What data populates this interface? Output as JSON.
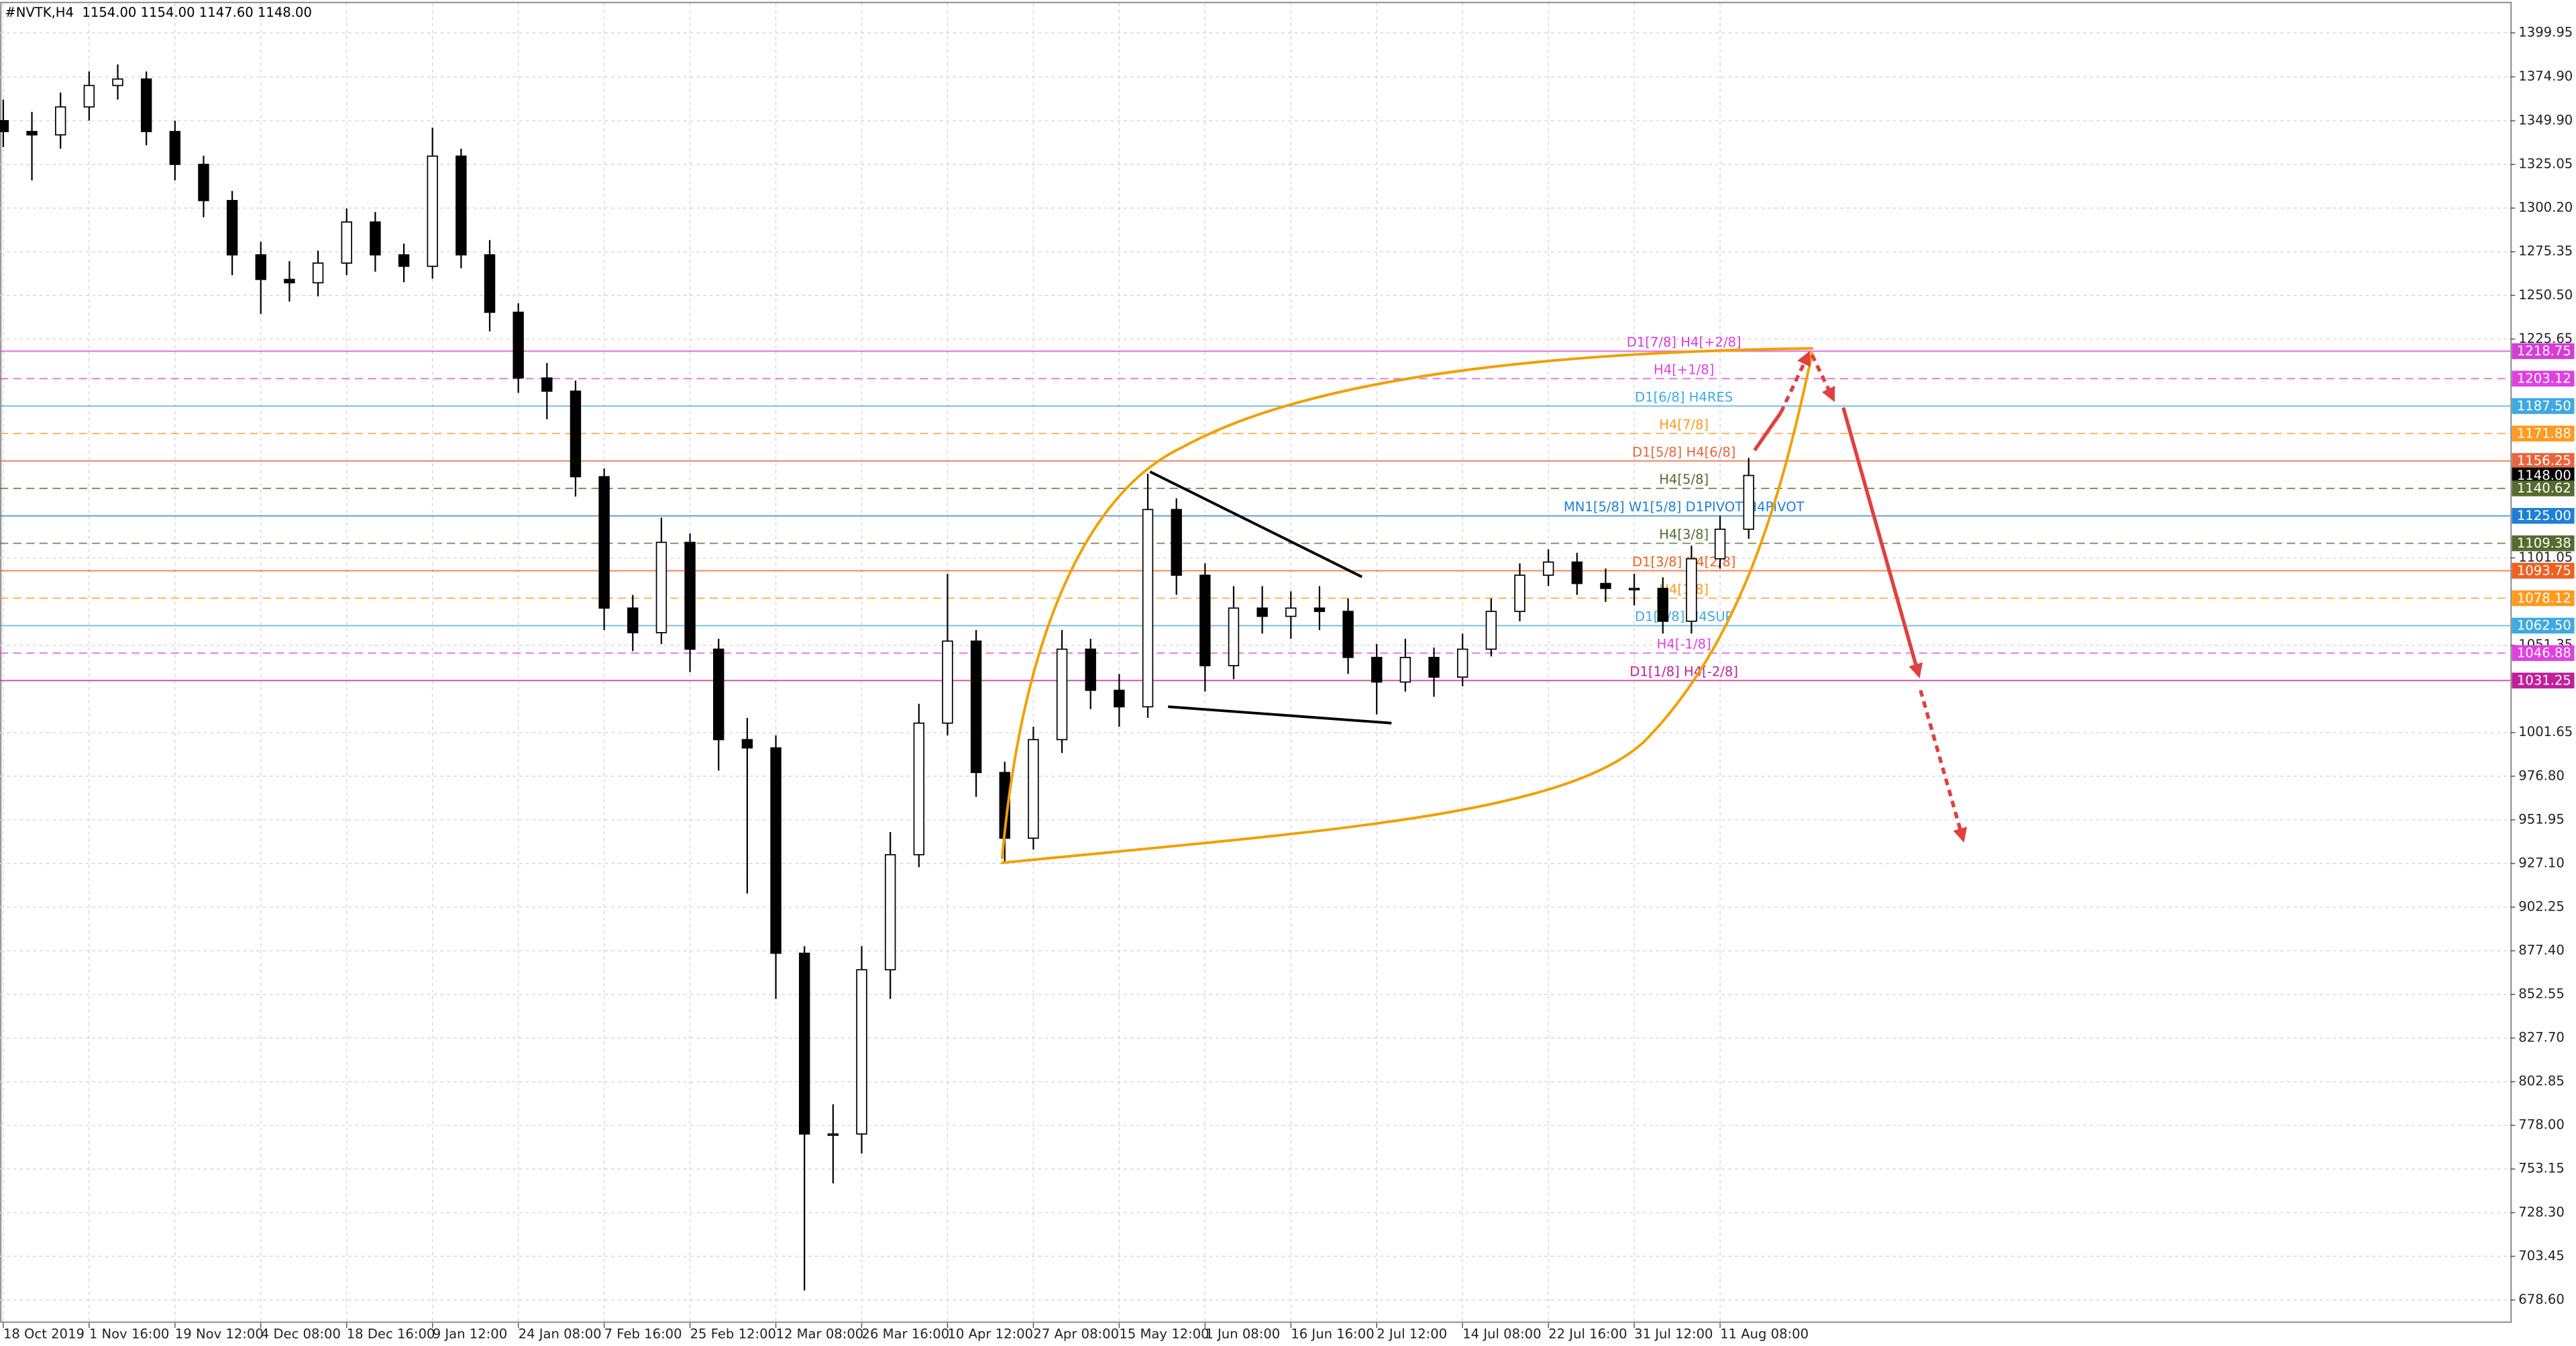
{
  "chart_data": {
    "type": "candlestick",
    "title": "#NVTK,H4  1154.00 1154.00 1147.60 1148.00",
    "categories": [
      "18 Oct 2019",
      null,
      null,
      "1 Nov 16:00",
      null,
      null,
      "19 Nov 12:00",
      null,
      null,
      "4 Dec 08:00",
      null,
      null,
      "18 Dec 16:00",
      null,
      null,
      "9 Jan 12:00",
      null,
      null,
      "24 Jan 08:00",
      null,
      null,
      "7 Feb 16:00",
      null,
      null,
      "25 Feb 12:00",
      null,
      null,
      "12 Mar 08:00",
      null,
      null,
      "26 Mar 16:00",
      null,
      null,
      "10 Apr 12:00",
      null,
      null,
      "27 Apr 08:00",
      null,
      null,
      "15 May 12:00",
      null,
      null,
      "1 Jun 08:00",
      null,
      null,
      "16 Jun 16:00",
      null,
      null,
      "2 Jul 12:00",
      null,
      null,
      "14 Jul 08:00",
      null,
      null,
      "22 Jul 16:00",
      null,
      null,
      "31 Jul 12:00",
      null,
      null,
      "11 Aug 08:00",
      null
    ],
    "open": [
      1350.0,
      1343.8,
      1341.9,
      1357.8,
      1370.0,
      1373.7,
      1343.8,
      1325.1,
      1304.5,
      1273.6,
      1259.6,
      1257.7,
      1268.9,
      1292.3,
      1273.6,
      1267.1,
      1329.8,
      1273.6,
      1240.9,
      1203.5,
      1196.0,
      1147.3,
      1072.5,
      1058.5,
      1109.9,
      1049.1,
      997.6,
      992.9,
      876.0,
      773.1,
      773.1,
      866.6,
      932.1,
      1007.0,
      1053.7,
      978.9,
      941.5,
      997.6,
      1049.1,
      1025.7,
      1016.3,
      1128.6,
      1091.2,
      1039.7,
      1072.5,
      1067.8,
      1072.5,
      1070.6,
      1044.4,
      1030.4,
      1044.4,
      1033.2,
      1049.1,
      1070.6,
      1091.2,
      1098.7,
      1086.5,
      1083.7,
      1083.7,
      1065.0,
      1100.6,
      1117.4
    ],
    "high": [
      1362,
      1355,
      1366,
      1378,
      1382,
      1378,
      1350,
      1330,
      1310,
      1281,
      1270,
      1276,
      1300,
      1298,
      1280,
      1346,
      1334,
      1282,
      1246,
      1212,
      1202,
      1152,
      1080,
      1124,
      1115,
      1055,
      1010,
      1000,
      880,
      790,
      880,
      945,
      1018,
      1092,
      1060,
      985,
      1005,
      1060,
      1055,
      1035,
      1149,
      1135,
      1098,
      1085,
      1085,
      1082,
      1085,
      1078,
      1052,
      1055,
      1050,
      1058,
      1078,
      1098,
      1106,
      1104,
      1095,
      1092,
      1090,
      1108,
      1125,
      1158
    ],
    "low": [
      1335,
      1316,
      1334,
      1350,
      1362,
      1336,
      1316,
      1295,
      1262,
      1240,
      1247,
      1250,
      1262,
      1264,
      1258,
      1260,
      1266,
      1230,
      1195,
      1180,
      1136,
      1060,
      1048,
      1052,
      1036,
      980,
      910,
      850,
      684,
      745,
      762,
      850,
      925,
      1000,
      965,
      928,
      935,
      990,
      1015,
      1005,
      1010,
      1080,
      1025,
      1032,
      1058,
      1055,
      1060,
      1035,
      1012,
      1025,
      1022,
      1028,
      1045,
      1065,
      1085,
      1080,
      1076,
      1074,
      1058,
      1058,
      1095,
      1112
    ],
    "close": [
      1343.8,
      1341.9,
      1357.8,
      1370.0,
      1373.7,
      1343.8,
      1325.1,
      1304.5,
      1273.6,
      1259.6,
      1257.7,
      1268.9,
      1292.3,
      1273.6,
      1267.1,
      1329.8,
      1273.6,
      1240.9,
      1203.5,
      1196.0,
      1147.3,
      1072.5,
      1058.5,
      1109.9,
      1049.1,
      997.6,
      992.9,
      876.0,
      773.1,
      773.1,
      866.6,
      932.1,
      1007.0,
      1053.7,
      978.9,
      941.5,
      997.6,
      1049.1,
      1025.7,
      1016.3,
      1128.6,
      1091.2,
      1039.7,
      1072.5,
      1067.8,
      1072.5,
      1070.6,
      1044.4,
      1030.4,
      1044.4,
      1033.2,
      1049.1,
      1070.6,
      1091.2,
      1098.7,
      1086.5,
      1083.7,
      1083.7,
      1065.0,
      1100.6,
      1117.4,
      1148.0
    ],
    "up_color": "#ffffff",
    "down_color": "#000000",
    "wick_color": "#000000",
    "ylim": [
      665.5,
      1414
    ],
    "yticks": [
      1399.95,
      {
        "value": 1374.9,
        "label": "1374.90"
      },
      {
        "value": 1349.9,
        "label": "1349.90"
      },
      1325.05,
      {
        "value": 1300.2,
        "label": "1300.20"
      },
      1275.35,
      {
        "value": 1250.5,
        "label": "1250.50"
      },
      1225.65,
      1101.05,
      1051.35,
      1001.65,
      {
        "value": 976.8,
        "label": "976.80"
      },
      951.95,
      {
        "value": 927.1,
        "label": "927.10"
      },
      902.25,
      {
        "value": 877.4,
        "label": "877.40"
      },
      852.55,
      {
        "value": 827.7,
        "label": "827.70"
      },
      802.85,
      {
        "value": 778,
        "label": "778.00"
      },
      753.15,
      {
        "value": 728.3,
        "label": "728.30"
      },
      703.45,
      {
        "value": 678.6,
        "label": "678.60"
      }
    ],
    "grid": true,
    "levels": [
      {
        "value": 1218.75,
        "value_label": "1218.75",
        "name": "D1[7/8] H4[+2/8]",
        "color": "#d63cd6",
        "dashed": false
      },
      {
        "value": 1203.12,
        "value_label": "1203.12",
        "name": "H4[+1/8]",
        "color": "#e040e0",
        "dashed": true
      },
      {
        "value": 1187.5,
        "value_label": "1187.50",
        "name": "D1[6/8] H4RES",
        "color": "#3fa9e0",
        "dashed": false
      },
      {
        "value": 1171.88,
        "value_label": "1171.88",
        "name": "H4[7/8]",
        "color": "#ff9a1f",
        "dashed": true
      },
      {
        "value": 1156.25,
        "value_label": "1156.25",
        "name": "D1[5/8] H4[6/8]",
        "color": "#e8643c",
        "dashed": false
      },
      {
        "value": 1148,
        "value_label": "1148.00",
        "color": "#000000",
        "dashed": false
      },
      {
        "value": 1140.62,
        "value_label": "1140.62",
        "name": "H4[5/8]",
        "color": "#556b2f",
        "dashed": true
      },
      {
        "value": 1125,
        "value_label": "1125.00",
        "name": "MN1[5/8] W1[5/8] D1PIVOT H4PIVOT",
        "color": "#1e7fd6",
        "dashed": false
      },
      {
        "value": 1109.38,
        "value_label": "1109.38",
        "name": "H4[3/8]",
        "color": "#556b2f",
        "dashed": true
      },
      {
        "value": 1093.75,
        "value_label": "1093.75",
        "name": "D1[3/8] H4[2/8]",
        "color": "#f06020",
        "dashed": false
      },
      {
        "value": 1078.12,
        "value_label": "1078.12",
        "name": "H4[1/8]",
        "color": "#ff9a1f",
        "dashed": true
      },
      {
        "value": 1062.5,
        "value_label": "1062.50",
        "name": "D1[2/8] H4SUP",
        "color": "#3fa9e0",
        "dashed": false
      },
      {
        "value": 1046.88,
        "value_label": "1046.88",
        "name": "H4[-1/8]",
        "color": "#e040e0",
        "dashed": true
      },
      {
        "value": 1031.25,
        "value_label": "1031.25",
        "name": "D1[1/8] H4[-2/8]",
        "color": "#c0209a",
        "dashed": false
      }
    ]
  }
}
